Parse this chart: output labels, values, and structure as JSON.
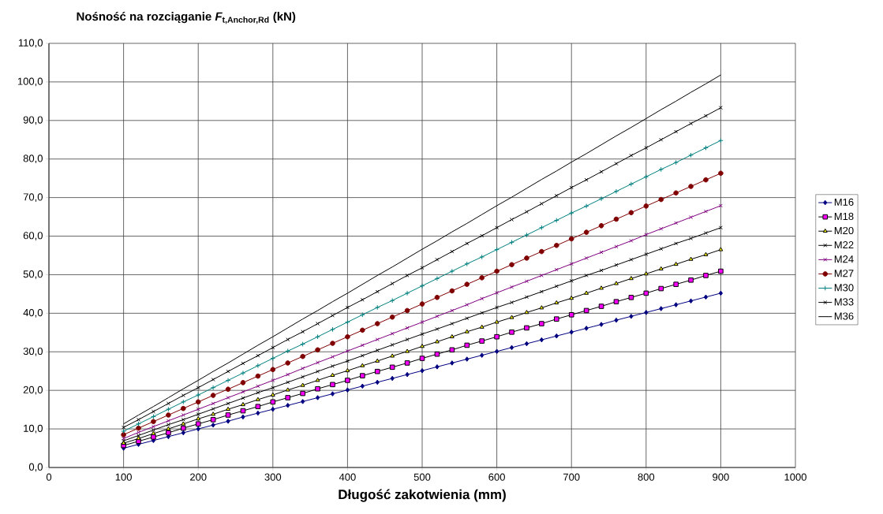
{
  "chart_data": {
    "type": "line",
    "title": "\\text{\\bfseries Nośność na rozciąganie }\\text{\\bfseries\\itshape F}_{\\text{\\bfseries t,Anchor,Rd}}\\text{\\bfseries\\ (kN)}",
    "xlabel": "Długość zakotwienia (mm)",
    "x": [
      100,
      120,
      140,
      160,
      180,
      200,
      220,
      240,
      260,
      280,
      300,
      320,
      340,
      360,
      380,
      400,
      420,
      440,
      460,
      480,
      500,
      520,
      540,
      560,
      580,
      600,
      620,
      640,
      660,
      680,
      700,
      720,
      740,
      760,
      780,
      800,
      820,
      840,
      860,
      880,
      900
    ],
    "series": [
      {
        "name": "M16",
        "color": "#000080",
        "marker": "diamond",
        "values": [
          5.0,
          6.0,
          7.0,
          8.0,
          9.0,
          10.0,
          11.0,
          12.0,
          13.1,
          14.1,
          15.1,
          16.1,
          17.1,
          18.1,
          19.1,
          20.1,
          21.1,
          22.1,
          23.1,
          24.1,
          25.1,
          26.1,
          27.1,
          28.1,
          29.1,
          30.1,
          31.1,
          32.1,
          33.1,
          34.1,
          35.1,
          36.1,
          37.1,
          38.2,
          39.2,
          40.2,
          41.2,
          42.2,
          43.2,
          44.2,
          45.2
        ]
      },
      {
        "name": "M18",
        "color": "#ff00ff",
        "marker": "square",
        "values": [
          5.7,
          6.8,
          7.9,
          9.0,
          10.2,
          11.3,
          12.4,
          13.6,
          14.7,
          15.8,
          17.0,
          18.1,
          19.2,
          20.4,
          21.5,
          22.6,
          23.8,
          24.9,
          26.0,
          27.1,
          28.3,
          29.4,
          30.5,
          31.7,
          32.8,
          33.9,
          35.1,
          36.2,
          37.3,
          38.5,
          39.6,
          40.7,
          41.8,
          43.0,
          44.1,
          45.2,
          46.4,
          47.5,
          48.6,
          49.8,
          50.9
        ]
      },
      {
        "name": "M20",
        "color": "#ffff00",
        "marker": "triangle",
        "values": [
          6.3,
          7.5,
          8.8,
          10.0,
          11.3,
          12.6,
          13.8,
          15.1,
          16.3,
          17.6,
          18.8,
          20.1,
          21.3,
          22.6,
          23.9,
          25.1,
          26.4,
          27.6,
          28.9,
          30.1,
          31.4,
          32.6,
          33.9,
          35.2,
          36.4,
          37.7,
          38.9,
          40.2,
          41.4,
          42.7,
          43.9,
          45.2,
          46.5,
          47.7,
          49.0,
          50.2,
          51.5,
          52.7,
          54.0,
          55.2,
          56.5
        ]
      },
      {
        "name": "M22",
        "color": "#000000",
        "marker": "cross",
        "values": [
          6.9,
          8.3,
          9.7,
          11.1,
          12.4,
          13.8,
          15.2,
          16.6,
          18.0,
          19.4,
          20.7,
          22.1,
          23.5,
          24.9,
          26.3,
          27.6,
          29.0,
          30.4,
          31.8,
          33.2,
          34.6,
          35.9,
          37.3,
          38.7,
          40.1,
          41.5,
          42.8,
          44.2,
          45.6,
          47.0,
          48.4,
          49.8,
          51.1,
          52.5,
          53.9,
          55.3,
          56.7,
          58.1,
          59.4,
          60.8,
          62.2
        ]
      },
      {
        "name": "M24",
        "color": "#800080",
        "marker": "cross",
        "values": [
          7.5,
          9.1,
          10.6,
          12.1,
          13.6,
          15.1,
          16.6,
          18.1,
          19.6,
          21.1,
          22.6,
          24.1,
          25.7,
          27.2,
          28.7,
          30.2,
          31.7,
          33.2,
          34.7,
          36.2,
          37.7,
          39.2,
          40.7,
          42.2,
          43.8,
          45.3,
          46.8,
          48.3,
          49.8,
          51.3,
          52.8,
          54.3,
          55.8,
          57.3,
          58.8,
          60.4,
          61.9,
          63.4,
          64.9,
          66.4,
          67.9
        ]
      },
      {
        "name": "M27",
        "color": "#800000",
        "marker": "circle",
        "values": [
          8.5,
          10.2,
          11.9,
          13.6,
          15.3,
          17.0,
          18.7,
          20.3,
          22.0,
          23.7,
          25.4,
          27.1,
          28.8,
          30.5,
          32.2,
          33.9,
          35.6,
          37.3,
          39.0,
          40.7,
          42.4,
          44.1,
          45.8,
          47.5,
          49.2,
          50.9,
          52.6,
          54.3,
          56.0,
          57.6,
          59.3,
          61.0,
          62.7,
          64.4,
          66.1,
          67.8,
          69.5,
          71.2,
          72.9,
          74.6,
          76.3
        ]
      },
      {
        "name": "M30",
        "color": "#008080",
        "marker": "plus",
        "values": [
          9.4,
          11.3,
          13.2,
          15.1,
          17.0,
          18.8,
          20.7,
          22.6,
          24.5,
          26.4,
          28.3,
          30.2,
          32.0,
          33.9,
          35.8,
          37.7,
          39.6,
          41.5,
          43.3,
          45.2,
          47.1,
          49.0,
          50.9,
          52.8,
          54.6,
          56.5,
          58.4,
          60.3,
          62.2,
          64.1,
          66.0,
          67.8,
          69.7,
          71.6,
          73.5,
          75.4,
          77.3,
          79.1,
          81.0,
          82.9,
          84.8
        ]
      },
      {
        "name": "M33",
        "color": "#000000",
        "marker": "cross",
        "values": [
          10.4,
          12.4,
          14.5,
          16.6,
          18.7,
          20.7,
          22.8,
          24.9,
          27.0,
          29.0,
          31.1,
          33.2,
          35.2,
          37.3,
          39.4,
          41.5,
          43.5,
          45.6,
          47.7,
          49.8,
          51.8,
          53.9,
          56.0,
          58.1,
          60.1,
          62.2,
          64.3,
          66.3,
          68.4,
          70.5,
          72.6,
          74.6,
          76.7,
          78.8,
          80.9,
          82.9,
          85.0,
          87.1,
          89.2,
          91.2,
          93.3
        ]
      },
      {
        "name": "M36",
        "color": "#000000",
        "marker": "none",
        "values": [
          11.3,
          13.6,
          15.8,
          18.1,
          20.4,
          22.6,
          24.9,
          27.1,
          29.4,
          31.7,
          33.9,
          36.2,
          38.5,
          40.7,
          43.0,
          45.2,
          47.5,
          49.8,
          52.0,
          54.3,
          56.6,
          58.8,
          61.1,
          63.3,
          65.6,
          67.9,
          70.1,
          72.4,
          74.7,
          76.9,
          79.2,
          81.4,
          83.7,
          86.0,
          88.2,
          90.5,
          92.8,
          95.0,
          97.3,
          99.5,
          101.8
        ]
      }
    ],
    "xlim": [
      0,
      1000
    ],
    "xticks": [
      0,
      100,
      200,
      300,
      400,
      500,
      600,
      700,
      800,
      900,
      1000
    ],
    "ylim": [
      0,
      110
    ],
    "yticks": [
      {
        "value": 0,
        "label": "0,0"
      },
      {
        "value": 10,
        "label": "10,0"
      },
      {
        "value": 20,
        "label": "20,0"
      },
      {
        "value": 30,
        "label": "30,0"
      },
      {
        "value": 40,
        "label": "40,0"
      },
      {
        "value": 50,
        "label": "50,0"
      },
      {
        "value": 60,
        "label": "60,0"
      },
      {
        "value": 70,
        "label": "70,0"
      },
      {
        "value": 80,
        "label": "80,0"
      },
      {
        "value": 90,
        "label": "90,0"
      },
      {
        "value": 100,
        "label": "100,0"
      },
      {
        "value": 110,
        "label": "110,0"
      }
    ],
    "grid": true,
    "legend": "right",
    "line_style": "solid"
  }
}
